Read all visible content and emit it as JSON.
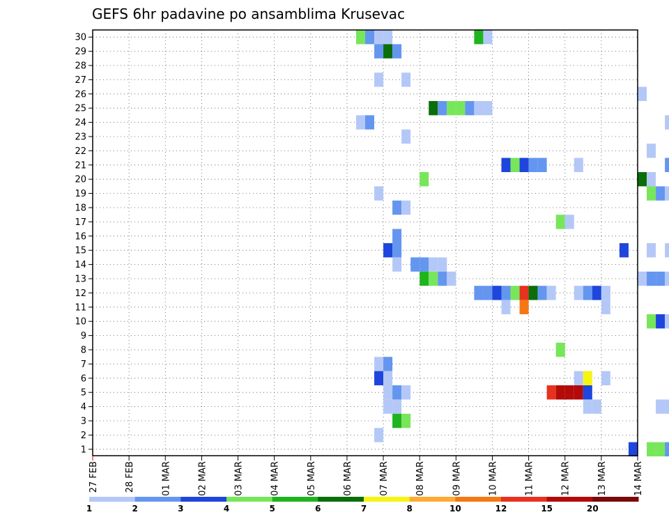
{
  "chart_data": {
    "type": "heatmap",
    "title": "GEFS 6hr padavine po ansamblima Krusevac",
    "xlabel": "",
    "ylabel": "",
    "x_ticks": [
      "27 FEB",
      "28 FEB",
      "01 MAR",
      "02 MAR",
      "03 MAR",
      "04 MAR",
      "05 MAR",
      "06 MAR",
      "07 MAR",
      "08 MAR",
      "09 MAR",
      "10 MAR",
      "11 MAR",
      "12 MAR",
      "13 MAR",
      "14 MAR"
    ],
    "y_members": [
      1,
      2,
      3,
      4,
      5,
      6,
      7,
      8,
      9,
      10,
      11,
      12,
      13,
      14,
      15,
      16,
      17,
      18,
      19,
      20,
      21,
      22,
      23,
      24,
      25,
      26,
      27,
      28,
      29,
      30
    ],
    "grid": true,
    "colorbar": {
      "position": "bottom",
      "bins": [
        {
          "label": "1",
          "color": "#b4c8f8"
        },
        {
          "label": "2",
          "color": "#6496f0"
        },
        {
          "label": "3",
          "color": "#1e46dc"
        },
        {
          "label": "4",
          "color": "#78e65a"
        },
        {
          "label": "5",
          "color": "#1eb41e"
        },
        {
          "label": "6",
          "color": "#0a6e0a"
        },
        {
          "label": "7",
          "color": "#f5f514"
        },
        {
          "label": "8",
          "color": "#ffaa32"
        },
        {
          "label": "10",
          "color": "#f57814"
        },
        {
          "label": "12",
          "color": "#e6321e"
        },
        {
          "label": "15",
          "color": "#b40a0a"
        },
        {
          "label": "20",
          "color": "#780a0a"
        }
      ]
    },
    "cells": [
      {
        "m": 30,
        "d": 7.25,
        "c": "#78e65a"
      },
      {
        "m": 30,
        "d": 7.5,
        "c": "#6496f0"
      },
      {
        "m": 30,
        "d": 7.75,
        "c": "#b4c8f8"
      },
      {
        "m": 30,
        "d": 8.0,
        "c": "#b4c8f8"
      },
      {
        "m": 30,
        "d": 10.5,
        "c": "#1eb41e"
      },
      {
        "m": 30,
        "d": 10.75,
        "c": "#b4c8f8"
      },
      {
        "m": 30,
        "d": 16.0,
        "c": "#b4c8f8"
      },
      {
        "m": 30,
        "d": 16.25,
        "c": "#b4c8f8"
      },
      {
        "m": 30,
        "d": 16.5,
        "c": "#1e46dc"
      },
      {
        "m": 29,
        "d": 7.75,
        "c": "#6496f0"
      },
      {
        "m": 29,
        "d": 8.0,
        "c": "#0a6e0a"
      },
      {
        "m": 29,
        "d": 8.25,
        "c": "#6496f0"
      },
      {
        "m": 27,
        "d": 7.75,
        "c": "#b4c8f8"
      },
      {
        "m": 27,
        "d": 8.5,
        "c": "#b4c8f8"
      },
      {
        "m": 26,
        "d": 15.0,
        "c": "#b4c8f8"
      },
      {
        "m": 25,
        "d": 9.25,
        "c": "#0a6e0a"
      },
      {
        "m": 25,
        "d": 9.5,
        "c": "#6496f0"
      },
      {
        "m": 25,
        "d": 9.75,
        "c": "#78e65a"
      },
      {
        "m": 25,
        "d": 10.0,
        "c": "#78e65a"
      },
      {
        "m": 25,
        "d": 10.25,
        "c": "#6496f0"
      },
      {
        "m": 25,
        "d": 10.5,
        "c": "#b4c8f8"
      },
      {
        "m": 25,
        "d": 10.75,
        "c": "#b4c8f8"
      },
      {
        "m": 24,
        "d": 7.25,
        "c": "#b4c8f8"
      },
      {
        "m": 24,
        "d": 7.5,
        "c": "#6496f0"
      },
      {
        "m": 24,
        "d": 15.75,
        "c": "#b4c8f8"
      },
      {
        "m": 24,
        "d": 16.0,
        "c": "#1eb41e"
      },
      {
        "m": 23,
        "d": 8.5,
        "c": "#b4c8f8"
      },
      {
        "m": 22,
        "d": 15.25,
        "c": "#b4c8f8"
      },
      {
        "m": 22,
        "d": 16.0,
        "c": "#b4c8f8"
      },
      {
        "m": 21,
        "d": 11.25,
        "c": "#1e46dc"
      },
      {
        "m": 21,
        "d": 11.5,
        "c": "#78e65a"
      },
      {
        "m": 21,
        "d": 11.75,
        "c": "#1e46dc"
      },
      {
        "m": 21,
        "d": 12.0,
        "c": "#6496f0"
      },
      {
        "m": 21,
        "d": 12.25,
        "c": "#6496f0"
      },
      {
        "m": 21,
        "d": 13.25,
        "c": "#b4c8f8"
      },
      {
        "m": 21,
        "d": 15.75,
        "c": "#6496f0"
      },
      {
        "m": 21,
        "d": 16.0,
        "c": "#0a6e0a"
      },
      {
        "m": 21,
        "d": 16.25,
        "c": "#ffaa32"
      },
      {
        "m": 21,
        "d": 16.5,
        "c": "#1eb41e"
      },
      {
        "m": 20,
        "d": 9.0,
        "c": "#78e65a"
      },
      {
        "m": 20,
        "d": 15.0,
        "c": "#0a6e0a"
      },
      {
        "m": 20,
        "d": 15.25,
        "c": "#b4c8f8"
      },
      {
        "m": 20,
        "d": 16.5,
        "c": "#b4c8f8"
      },
      {
        "m": 20,
        "d": 16.75,
        "c": "#78e65a"
      },
      {
        "m": 19,
        "d": 7.75,
        "c": "#b4c8f8"
      },
      {
        "m": 19,
        "d": 15.25,
        "c": "#78e65a"
      },
      {
        "m": 19,
        "d": 15.5,
        "c": "#6496f0"
      },
      {
        "m": 19,
        "d": 15.75,
        "c": "#b4c8f8"
      },
      {
        "m": 19,
        "d": 16.0,
        "c": "#6496f0"
      },
      {
        "m": 19,
        "d": 16.25,
        "c": "#b4c8f8"
      },
      {
        "m": 18,
        "d": 8.25,
        "c": "#6496f0"
      },
      {
        "m": 18,
        "d": 8.5,
        "c": "#b4c8f8"
      },
      {
        "m": 17,
        "d": 12.75,
        "c": "#78e65a"
      },
      {
        "m": 17,
        "d": 13.0,
        "c": "#b4c8f8"
      },
      {
        "m": 16,
        "d": 8.25,
        "c": "#6496f0"
      },
      {
        "m": 15,
        "d": 8.0,
        "c": "#1e46dc"
      },
      {
        "m": 15,
        "d": 8.25,
        "c": "#6496f0"
      },
      {
        "m": 15,
        "d": 14.5,
        "c": "#1e46dc"
      },
      {
        "m": 15,
        "d": 15.25,
        "c": "#b4c8f8"
      },
      {
        "m": 15,
        "d": 15.75,
        "c": "#b4c8f8"
      },
      {
        "m": 14,
        "d": 8.25,
        "c": "#b4c8f8"
      },
      {
        "m": 14,
        "d": 8.75,
        "c": "#6496f0"
      },
      {
        "m": 14,
        "d": 9.0,
        "c": "#6496f0"
      },
      {
        "m": 14,
        "d": 9.25,
        "c": "#b4c8f8"
      },
      {
        "m": 14,
        "d": 9.5,
        "c": "#b4c8f8"
      },
      {
        "m": 13,
        "d": 9.0,
        "c": "#1eb41e"
      },
      {
        "m": 13,
        "d": 9.25,
        "c": "#78e65a"
      },
      {
        "m": 13,
        "d": 9.5,
        "c": "#6496f0"
      },
      {
        "m": 13,
        "d": 9.75,
        "c": "#b4c8f8"
      },
      {
        "m": 13,
        "d": 15.0,
        "c": "#b4c8f8"
      },
      {
        "m": 13,
        "d": 15.25,
        "c": "#6496f0"
      },
      {
        "m": 13,
        "d": 15.5,
        "c": "#6496f0"
      },
      {
        "m": 13,
        "d": 15.75,
        "c": "#b4c8f8"
      },
      {
        "m": 12,
        "d": 10.5,
        "c": "#6496f0"
      },
      {
        "m": 12,
        "d": 10.75,
        "c": "#6496f0"
      },
      {
        "m": 12,
        "d": 11.0,
        "c": "#1e46dc"
      },
      {
        "m": 12,
        "d": 11.25,
        "c": "#6496f0"
      },
      {
        "m": 12,
        "d": 11.5,
        "c": "#78e65a"
      },
      {
        "m": 12,
        "d": 11.75,
        "c": "#e6321e"
      },
      {
        "m": 12,
        "d": 12.0,
        "c": "#0a6e0a"
      },
      {
        "m": 12,
        "d": 12.25,
        "c": "#6496f0"
      },
      {
        "m": 12,
        "d": 12.5,
        "c": "#b4c8f8"
      },
      {
        "m": 12,
        "d": 13.25,
        "c": "#b4c8f8"
      },
      {
        "m": 12,
        "d": 13.5,
        "c": "#6496f0"
      },
      {
        "m": 12,
        "d": 13.75,
        "c": "#1e46dc"
      },
      {
        "m": 12,
        "d": 14.0,
        "c": "#b4c8f8"
      },
      {
        "m": 11,
        "d": 11.25,
        "c": "#b4c8f8"
      },
      {
        "m": 11,
        "d": 11.75,
        "c": "#f57814"
      },
      {
        "m": 11,
        "d": 14.0,
        "c": "#b4c8f8"
      },
      {
        "m": 10,
        "d": 15.25,
        "c": "#78e65a"
      },
      {
        "m": 10,
        "d": 15.5,
        "c": "#1e46dc"
      },
      {
        "m": 10,
        "d": 15.75,
        "c": "#b4c8f8"
      },
      {
        "m": 8,
        "d": 12.75,
        "c": "#78e65a"
      },
      {
        "m": 7,
        "d": 7.75,
        "c": "#b4c8f8"
      },
      {
        "m": 7,
        "d": 8.0,
        "c": "#6496f0"
      },
      {
        "m": 6,
        "d": 7.75,
        "c": "#1e46dc"
      },
      {
        "m": 6,
        "d": 8.0,
        "c": "#b4c8f8"
      },
      {
        "m": 6,
        "d": 13.25,
        "c": "#b4c8f8"
      },
      {
        "m": 6,
        "d": 13.5,
        "c": "#f5f514"
      },
      {
        "m": 6,
        "d": 14.0,
        "c": "#b4c8f8"
      },
      {
        "m": 5,
        "d": 8.0,
        "c": "#b4c8f8"
      },
      {
        "m": 5,
        "d": 8.25,
        "c": "#6496f0"
      },
      {
        "m": 5,
        "d": 8.5,
        "c": "#b4c8f8"
      },
      {
        "m": 5,
        "d": 12.5,
        "c": "#e6321e"
      },
      {
        "m": 5,
        "d": 12.75,
        "c": "#b40a0a"
      },
      {
        "m": 5,
        "d": 13.0,
        "c": "#b40a0a"
      },
      {
        "m": 5,
        "d": 13.25,
        "c": "#b40a0a"
      },
      {
        "m": 5,
        "d": 13.5,
        "c": "#1e46dc"
      },
      {
        "m": 4,
        "d": 8.0,
        "c": "#b4c8f8"
      },
      {
        "m": 4,
        "d": 8.25,
        "c": "#b4c8f8"
      },
      {
        "m": 4,
        "d": 13.5,
        "c": "#b4c8f8"
      },
      {
        "m": 4,
        "d": 13.75,
        "c": "#b4c8f8"
      },
      {
        "m": 4,
        "d": 15.5,
        "c": "#b4c8f8"
      },
      {
        "m": 4,
        "d": 15.75,
        "c": "#b4c8f8"
      },
      {
        "m": 4,
        "d": 16.0,
        "c": "#6496f0"
      },
      {
        "m": 3,
        "d": 8.25,
        "c": "#1eb41e"
      },
      {
        "m": 3,
        "d": 8.5,
        "c": "#78e65a"
      },
      {
        "m": 2,
        "d": 7.75,
        "c": "#b4c8f8"
      },
      {
        "m": 1,
        "d": 14.75,
        "c": "#1e46dc"
      },
      {
        "m": 1,
        "d": 15.25,
        "c": "#78e65a"
      },
      {
        "m": 1,
        "d": 15.5,
        "c": "#78e65a"
      },
      {
        "m": 1,
        "d": 15.75,
        "c": "#6496f0"
      }
    ]
  }
}
